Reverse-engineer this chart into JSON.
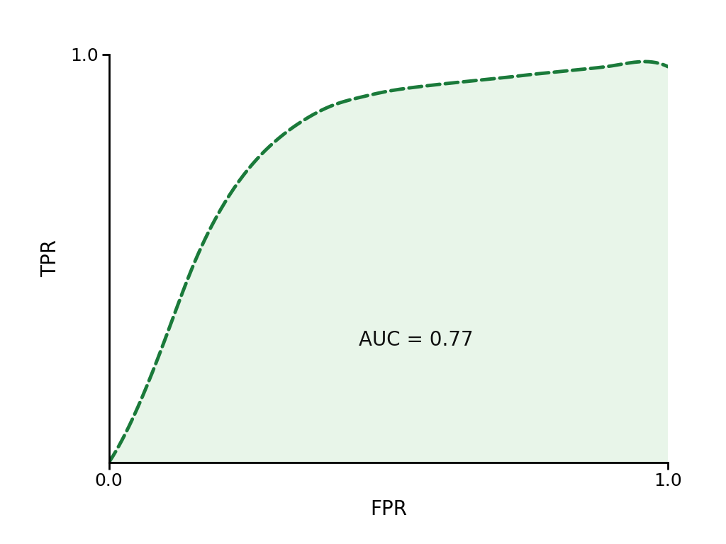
{
  "title": "",
  "xlabel": "FPR",
  "ylabel": "TPR",
  "auc_text": "AUC = 0.77",
  "curve_color": "#1a7a3a",
  "fill_color": "#e8f5e9",
  "fill_alpha": 1.0,
  "line_width": 3.5,
  "line_style": "--",
  "xlim": [
    0.0,
    1.0
  ],
  "ylim": [
    0.0,
    1.0
  ],
  "xlabel_fontsize": 20,
  "ylabel_fontsize": 20,
  "tick_fontsize": 18,
  "auc_fontsize": 20,
  "background_color": "#ffffff",
  "spine_color": "#000000",
  "curve_fpr": [
    0.0,
    0.05,
    0.1,
    0.15,
    0.2,
    0.25,
    0.3,
    0.35,
    0.4,
    0.45,
    0.5,
    0.55,
    0.6,
    0.65,
    0.7,
    0.75,
    0.8,
    0.85,
    0.9,
    0.95,
    1.0
  ],
  "curve_tpr": [
    0.0,
    0.13,
    0.3,
    0.48,
    0.62,
    0.72,
    0.79,
    0.84,
    0.875,
    0.895,
    0.91,
    0.92,
    0.928,
    0.935,
    0.942,
    0.95,
    0.957,
    0.964,
    0.972,
    0.982,
    0.97
  ]
}
